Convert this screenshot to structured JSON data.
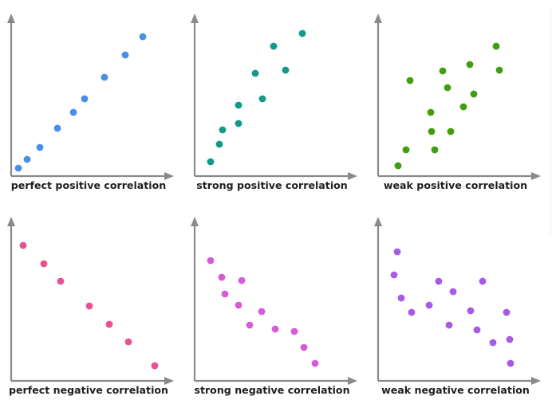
{
  "chart_data": [
    {
      "type": "scatter",
      "title": "perfect positive correlation",
      "xlabel": "",
      "ylabel": "",
      "xlim": [
        0,
        10
      ],
      "ylim": [
        0,
        10
      ],
      "grid": false,
      "color": "#4a8fe7",
      "points": [
        [
          0.45,
          0.5
        ],
        [
          1.0,
          1.05
        ],
        [
          1.8,
          1.8
        ],
        [
          2.9,
          3.0
        ],
        [
          3.9,
          4.0
        ],
        [
          4.6,
          4.85
        ],
        [
          5.85,
          6.2
        ],
        [
          7.15,
          7.6
        ],
        [
          8.25,
          8.75
        ]
      ]
    },
    {
      "type": "scatter",
      "title": "strong positive correlation",
      "xlabel": "",
      "ylabel": "",
      "xlim": [
        0,
        10
      ],
      "ylim": [
        0,
        10
      ],
      "grid": false,
      "color": "#12998a",
      "points": [
        [
          1.0,
          0.9
        ],
        [
          1.55,
          2.0
        ],
        [
          1.75,
          2.9
        ],
        [
          2.75,
          3.3
        ],
        [
          2.75,
          4.45
        ],
        [
          3.8,
          6.45
        ],
        [
          4.25,
          4.85
        ],
        [
          4.95,
          8.15
        ],
        [
          5.7,
          6.65
        ],
        [
          6.75,
          8.95
        ]
      ]
    },
    {
      "type": "scatter",
      "title": "weak positive correlation",
      "xlabel": "",
      "ylabel": "",
      "xlim": [
        0,
        10
      ],
      "ylim": [
        0,
        10
      ],
      "grid": false,
      "color": "#3f9e0c",
      "points": [
        [
          1.25,
          0.65
        ],
        [
          1.75,
          1.65
        ],
        [
          2.0,
          6.0
        ],
        [
          3.3,
          4.0
        ],
        [
          3.35,
          2.8
        ],
        [
          3.55,
          1.65
        ],
        [
          4.05,
          6.6
        ],
        [
          4.35,
          5.55
        ],
        [
          4.55,
          2.8
        ],
        [
          5.35,
          4.35
        ],
        [
          5.75,
          7.0
        ],
        [
          6.0,
          5.15
        ],
        [
          7.4,
          8.15
        ],
        [
          7.6,
          6.65
        ]
      ]
    },
    {
      "type": "scatter",
      "title": "perfect negative correlation",
      "xlabel": "",
      "ylabel": "",
      "xlim": [
        0,
        10
      ],
      "ylim": [
        0,
        10
      ],
      "grid": false,
      "color": "#e8508f",
      "points": [
        [
          0.75,
          8.5
        ],
        [
          2.05,
          7.35
        ],
        [
          3.1,
          6.25
        ],
        [
          4.9,
          4.7
        ],
        [
          6.15,
          3.55
        ],
        [
          7.35,
          2.45
        ],
        [
          9.0,
          0.95
        ]
      ]
    },
    {
      "type": "scatter",
      "title": "strong negative correlation",
      "xlabel": "",
      "ylabel": "",
      "xlim": [
        0,
        10
      ],
      "ylim": [
        0,
        10
      ],
      "grid": false,
      "color": "#d55bd8",
      "points": [
        [
          1.0,
          7.55
        ],
        [
          1.7,
          6.5
        ],
        [
          1.9,
          5.45
        ],
        [
          2.95,
          6.3
        ],
        [
          2.75,
          4.75
        ],
        [
          3.45,
          3.5
        ],
        [
          4.2,
          4.35
        ],
        [
          5.05,
          3.25
        ],
        [
          6.25,
          3.1
        ],
        [
          6.85,
          2.1
        ],
        [
          7.55,
          1.1
        ]
      ]
    },
    {
      "type": "scatter",
      "title": "weak negative correlation",
      "xlabel": "",
      "ylabel": "",
      "xlim": [
        0,
        10
      ],
      "ylim": [
        0,
        10
      ],
      "grid": false,
      "color": "#a75ae6",
      "points": [
        [
          1.2,
          8.1
        ],
        [
          1.0,
          6.65
        ],
        [
          1.45,
          5.2
        ],
        [
          2.1,
          4.3
        ],
        [
          3.2,
          4.75
        ],
        [
          3.8,
          6.25
        ],
        [
          4.45,
          3.5
        ],
        [
          4.7,
          5.6
        ],
        [
          5.8,
          4.4
        ],
        [
          6.2,
          3.2
        ],
        [
          6.55,
          6.25
        ],
        [
          7.2,
          2.4
        ],
        [
          8.05,
          4.3
        ],
        [
          8.25,
          2.6
        ],
        [
          8.3,
          1.1
        ]
      ]
    }
  ],
  "axis_color": "#8a8a8a",
  "label_color": "#1f1f1f"
}
